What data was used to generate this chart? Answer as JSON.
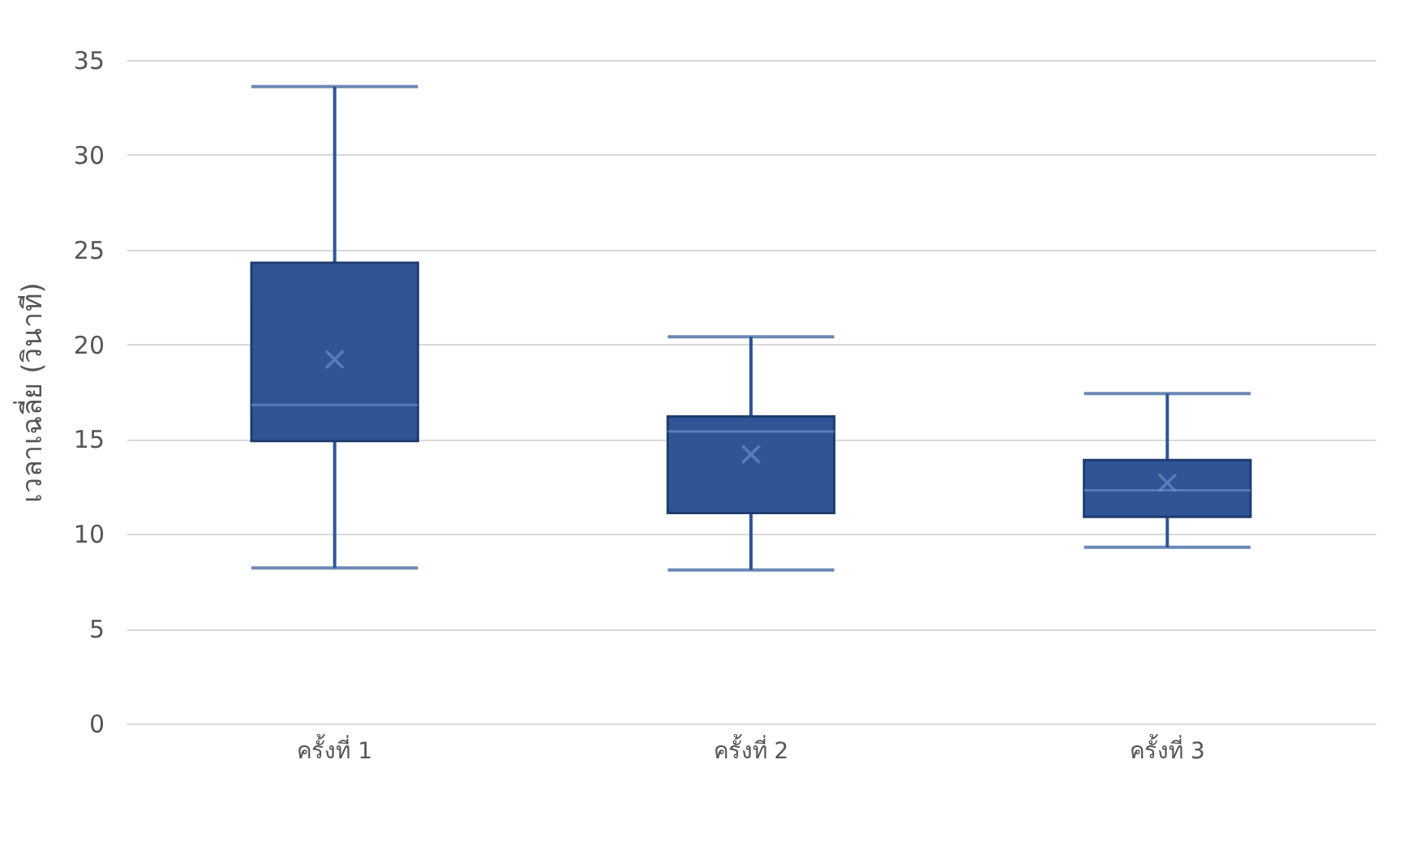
{
  "chart_data": {
    "type": "box",
    "ylabel": "เวลาเฉลี่ย (วินาที)",
    "categories": [
      "ครั้งที่ 1",
      "ครั้งที่ 2",
      "ครั้งที่ 3"
    ],
    "ylim": [
      0,
      35
    ],
    "yticks": [
      0,
      5,
      10,
      15,
      20,
      25,
      30,
      35
    ],
    "grid": "y",
    "series": [
      {
        "color": "#2f5597",
        "boxes": [
          {
            "low": 8.2,
            "q1": 14.9,
            "median": 16.8,
            "q3": 24.3,
            "high": 33.6,
            "mean": 19.2
          },
          {
            "low": 8.1,
            "q1": 11.1,
            "median": 15.4,
            "q3": 16.2,
            "high": 20.4,
            "mean": 14.2
          },
          {
            "low": 9.3,
            "q1": 10.9,
            "median": 12.3,
            "q3": 13.9,
            "high": 17.4,
            "mean": 12.7
          }
        ]
      }
    ]
  }
}
